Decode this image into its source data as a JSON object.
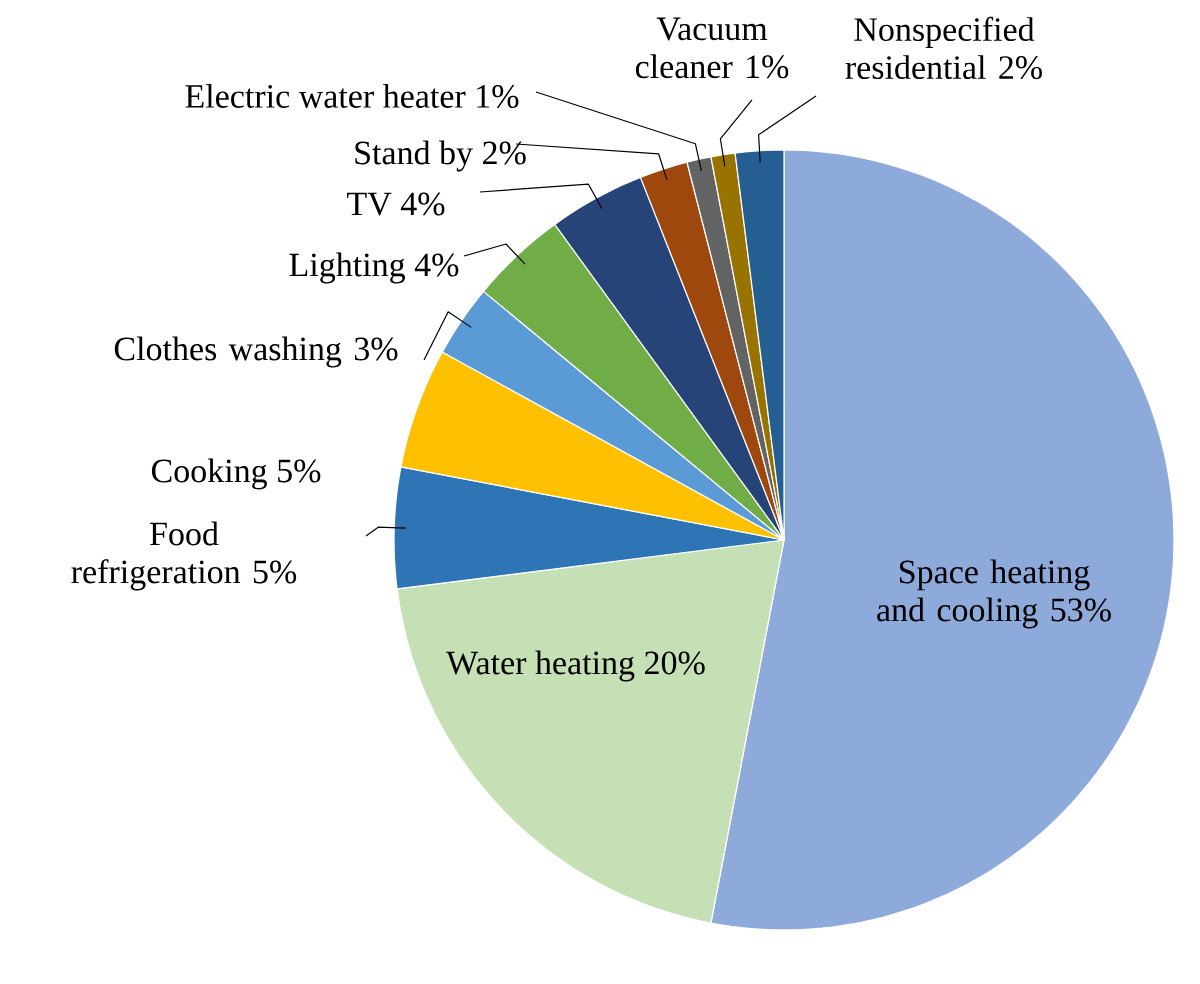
{
  "chart_data": {
    "type": "pie",
    "categories": [
      "Space heating and cooling",
      "Water heating",
      "Food refrigeration",
      "Cooking",
      "Clothes washing",
      "Lighting",
      "TV",
      "Stand by",
      "Electric water heater",
      "Vacuum cleaner",
      "Nonspecified residential"
    ],
    "values": [
      53,
      20,
      5,
      5,
      3,
      4,
      4,
      2,
      1,
      1,
      2
    ],
    "value_labels": [
      "53%",
      "20%",
      "5%",
      "5%",
      "3%",
      "4%",
      "4%",
      "2%",
      "1%",
      "1%",
      "2%"
    ],
    "colors": [
      "#8eaadb",
      "#c5e0b4",
      "#2e75b6",
      "#ffc000",
      "#5b9bd5",
      "#70ad47",
      "#264478",
      "#9e480e",
      "#636363",
      "#997300",
      "#255e91"
    ]
  }
}
